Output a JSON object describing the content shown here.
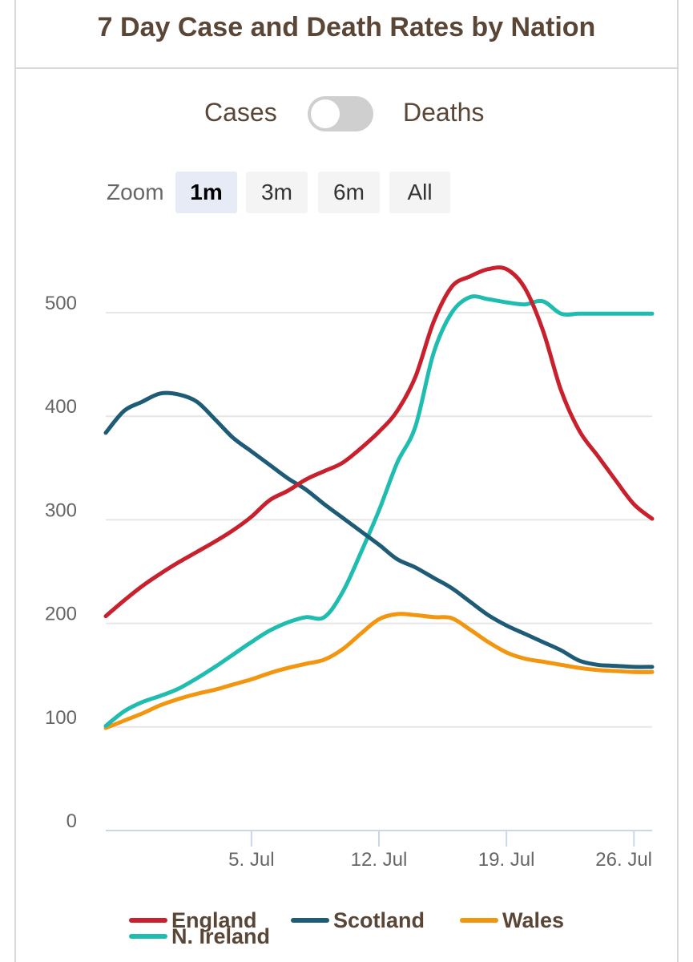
{
  "header": {
    "title": "7 Day Case and Death Rates by Nation"
  },
  "toggle": {
    "left_label": "Cases",
    "right_label": "Deaths",
    "state": "Cases"
  },
  "zoom": {
    "label": "Zoom",
    "buttons": [
      {
        "label": "1m",
        "active": true
      },
      {
        "label": "3m",
        "active": false
      },
      {
        "label": "6m",
        "active": false
      },
      {
        "label": "All",
        "active": false
      }
    ]
  },
  "chart_data": {
    "type": "line",
    "ylim": [
      0,
      500
    ],
    "yticks": [
      0,
      100,
      200,
      300,
      400,
      500
    ],
    "xlim": [
      "2021-06-27",
      "2021-07-27"
    ],
    "xticks": [
      {
        "date": "2021-07-05",
        "label": "5. Jul"
      },
      {
        "date": "2021-07-12",
        "label": "12. Jul"
      },
      {
        "date": "2021-07-19",
        "label": "19. Jul"
      },
      {
        "date": "2021-07-26",
        "label": "26. Jul"
      }
    ],
    "grid": true,
    "legend_position": "bottom",
    "x": [
      "2021-06-27",
      "2021-06-28",
      "2021-06-29",
      "2021-06-30",
      "2021-07-01",
      "2021-07-02",
      "2021-07-03",
      "2021-07-04",
      "2021-07-05",
      "2021-07-06",
      "2021-07-07",
      "2021-07-08",
      "2021-07-09",
      "2021-07-10",
      "2021-07-11",
      "2021-07-12",
      "2021-07-13",
      "2021-07-14",
      "2021-07-15",
      "2021-07-16",
      "2021-07-17",
      "2021-07-18",
      "2021-07-19",
      "2021-07-20",
      "2021-07-21",
      "2021-07-22",
      "2021-07-23",
      "2021-07-24",
      "2021-07-25",
      "2021-07-26",
      "2021-07-27"
    ],
    "series": [
      {
        "name": "England",
        "color": "#c8202c",
        "values": [
          207,
          222,
          236,
          248,
          259,
          269,
          279,
          290,
          303,
          319,
          328,
          339,
          347,
          355,
          369,
          385,
          405,
          438,
          491,
          525,
          535,
          542,
          542,
          524,
          483,
          425,
          386,
          362,
          338,
          315,
          301
        ]
      },
      {
        "name": "Scotland",
        "color": "#1e5b76",
        "values": [
          384,
          405,
          414,
          422,
          421,
          414,
          397,
          379,
          366,
          353,
          340,
          329,
          315,
          302,
          289,
          276,
          262,
          254,
          244,
          234,
          221,
          208,
          198,
          190,
          182,
          174,
          164,
          160,
          159,
          158,
          158
        ]
      },
      {
        "name": "Wales",
        "color": "#f2950f",
        "values": [
          99,
          106,
          113,
          121,
          127,
          132,
          136,
          141,
          146,
          152,
          157,
          161,
          165,
          175,
          190,
          204,
          209,
          208,
          206,
          205,
          194,
          182,
          172,
          166,
          163,
          160,
          157,
          155,
          154,
          153,
          153
        ]
      },
      {
        "name": "N. Ireland",
        "color": "#1fbcb0",
        "values": [
          101,
          115,
          124,
          130,
          137,
          147,
          158,
          170,
          182,
          193,
          201,
          206,
          206,
          230,
          268,
          309,
          355,
          390,
          461,
          500,
          515,
          513,
          510,
          508,
          511,
          499,
          499,
          499,
          499,
          499,
          499
        ]
      }
    ]
  }
}
